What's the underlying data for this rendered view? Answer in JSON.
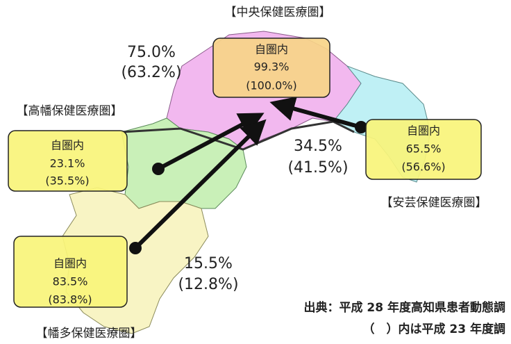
{
  "regions": [
    {
      "name": "【中央保健医療圏】",
      "label": "自圏内",
      "rate": "99.3%",
      "prev": "(100.0%)"
    },
    {
      "name": "【高幡保健医療圏】",
      "label": "自圏内",
      "rate": "23.1%",
      "prev": "(35.5%)"
    },
    {
      "name": "【安芸保健医療圏】",
      "label": "自圏内",
      "rate": "65.5%",
      "prev": "(56.6%)"
    },
    {
      "name": "【幡多保健医療圏】",
      "label": "自圏内",
      "rate": "83.5%",
      "prev": "(83.8%)"
    }
  ],
  "flows": [
    {
      "rate": "75.0%",
      "prev": "(63.2%)"
    },
    {
      "rate": "34.5%",
      "prev": "(41.5%)"
    },
    {
      "rate": "15.5%",
      "prev": "(12.8%)"
    }
  ],
  "source": [
    "出典：平成 28 年度高知県患者動態調",
    "（　）内は平成 23 年度調"
  ]
}
